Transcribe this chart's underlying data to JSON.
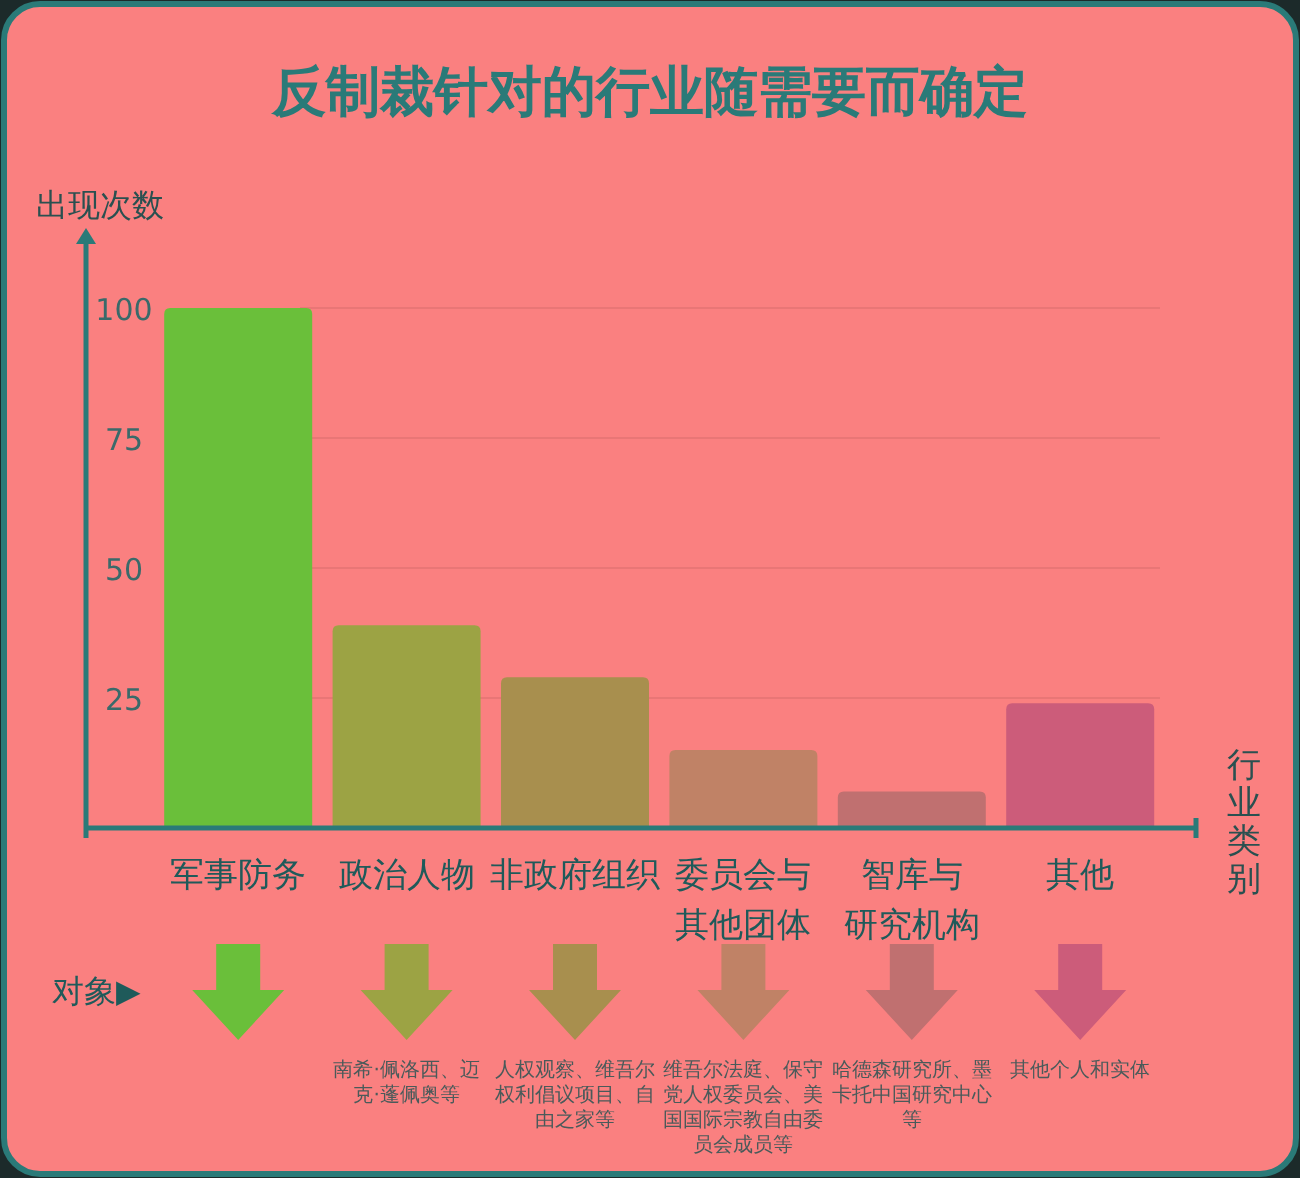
{
  "chart_data": {
    "type": "bar",
    "title": "反制裁针对的行业随需要而确定",
    "ylabel": "出现次数",
    "xlabel": "行业类别",
    "categories": [
      "军事防务",
      "政治人物",
      "非政府组织",
      "委员会与其他团体",
      "智库与研究机构",
      "其他"
    ],
    "values": [
      100,
      39,
      29,
      15,
      7,
      24
    ],
    "colors": [
      "#6abf3a",
      "#9ca344",
      "#a88f4e",
      "#c08266",
      "#c07070",
      "#cc5c7a"
    ],
    "ylim": [
      0,
      100
    ],
    "yticks": [
      25,
      50,
      75,
      100
    ],
    "grid": "y",
    "annotations": [
      "对象▶",
      "南希·佩洛西、迈克·蓬佩奥等",
      "人权观察、维吾尔权利倡议项目、自由之家等",
      "维吾尔法庭、保守党人权委员会、美国国际宗教自由委员会成员等",
      "哈德森研究所、墨卡托中国研究中心等",
      "其他个人和实体"
    ]
  }
}
